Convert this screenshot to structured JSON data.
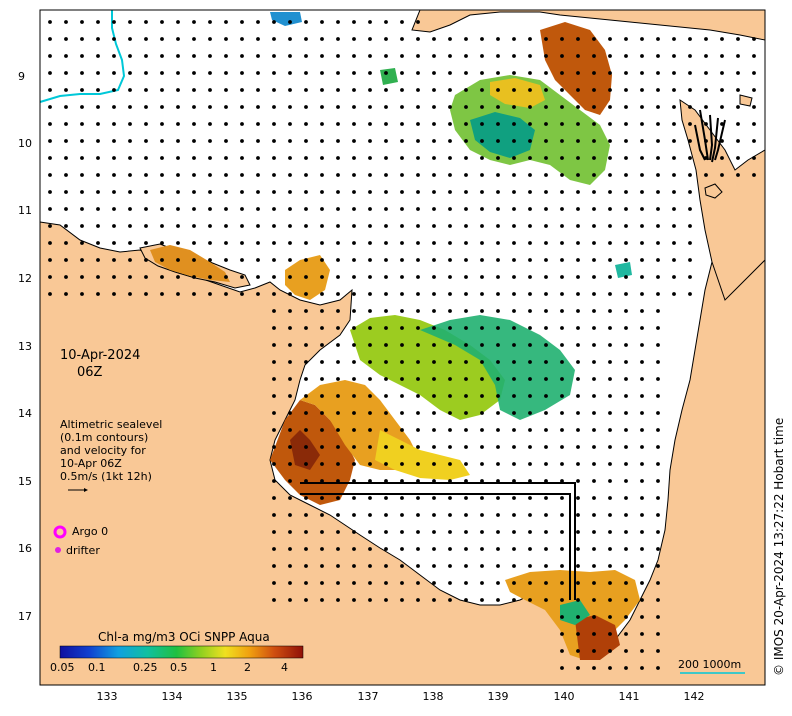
{
  "map": {
    "date_line1": "10-Apr-2024",
    "date_line2": "06Z",
    "sealevel_note": [
      "Altimetric sealevel",
      "(0.1m contours)",
      "and velocity for",
      "10-Apr 06Z",
      "0.5m/s (1kt 12h)"
    ],
    "legend_argo": "Argo 0",
    "legend_drifter": "drifter",
    "colorbar_title": "Chl-a mg/m3 OCi SNPP Aqua",
    "colorbar_ticks": [
      "0.05",
      "0.1",
      "0.25",
      "0.5",
      "1",
      "2",
      "4"
    ],
    "scale_label": "200  1000m",
    "credit": "© IMOS 20-Apr-2024 13:27:22 Hobart time",
    "lat_ticks": [
      "9",
      "10",
      "11",
      "12",
      "13",
      "14",
      "15",
      "16",
      "17"
    ],
    "lon_ticks": [
      "133",
      "134",
      "135",
      "136",
      "137",
      "138",
      "139",
      "140",
      "141",
      "142"
    ],
    "colors": {
      "land": "#f9c896",
      "ocean": "#ffffff",
      "contour": "#00c8d8",
      "argo": "#ff00ff",
      "drifter": "#e020e0"
    }
  }
}
